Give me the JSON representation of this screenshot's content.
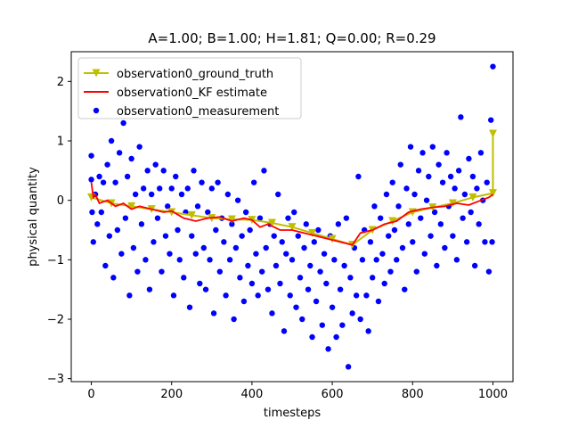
{
  "chart_data": {
    "type": "line",
    "title": "A=1.00; B=1.00; H=1.81; Q=0.00; R=0.29",
    "xlabel": "timesteps",
    "ylabel": "physical quantity",
    "xlim": [
      -50,
      1050
    ],
    "ylim": [
      -3.05,
      2.5
    ],
    "xticks": [
      0,
      200,
      400,
      600,
      800,
      1000
    ],
    "yticks": [
      -3,
      -2,
      -1,
      0,
      1,
      2
    ],
    "grid": false,
    "legend_position": "top-left",
    "series": [
      {
        "name": "observation0_ground_truth",
        "kind": "line-with-markers",
        "color": "#bfbf00",
        "marker": "triangle-down",
        "x": [
          0,
          50,
          100,
          150,
          200,
          250,
          300,
          350,
          400,
          450,
          500,
          550,
          600,
          650,
          700,
          750,
          800,
          850,
          900,
          950,
          1000,
          1000
        ],
        "y": [
          0.05,
          -0.05,
          -0.1,
          -0.15,
          -0.2,
          -0.25,
          -0.3,
          -0.32,
          -0.33,
          -0.38,
          -0.45,
          -0.55,
          -0.65,
          -0.75,
          -0.5,
          -0.35,
          -0.2,
          -0.12,
          -0.05,
          0.05,
          0.12,
          1.12
        ]
      },
      {
        "name": "observation0_KF estimate",
        "kind": "line",
        "color": "#ff0000",
        "x": [
          0,
          5,
          10,
          20,
          40,
          60,
          80,
          100,
          120,
          150,
          180,
          200,
          230,
          260,
          290,
          320,
          350,
          380,
          400,
          420,
          440,
          470,
          500,
          530,
          560,
          590,
          620,
          650,
          670,
          700,
          730,
          760,
          790,
          820,
          850,
          880,
          910,
          940,
          970,
          990,
          1000
        ],
        "y": [
          0.3,
          0.05,
          0.1,
          -0.05,
          0.0,
          -0.1,
          -0.05,
          -0.15,
          -0.1,
          -0.15,
          -0.2,
          -0.18,
          -0.3,
          -0.35,
          -0.3,
          -0.28,
          -0.35,
          -0.3,
          -0.33,
          -0.45,
          -0.4,
          -0.5,
          -0.5,
          -0.55,
          -0.6,
          -0.65,
          -0.7,
          -0.75,
          -0.55,
          -0.5,
          -0.4,
          -0.35,
          -0.2,
          -0.15,
          -0.12,
          -0.1,
          -0.05,
          -0.08,
          0.0,
          0.05,
          0.1
        ]
      },
      {
        "name": "observation0_measurement",
        "kind": "scatter",
        "color": "#0000ff",
        "note_values": "approximate samples read from the scatter cloud",
        "points": [
          [
            0,
            0.75
          ],
          [
            0,
            0.35
          ],
          [
            2,
            -0.2
          ],
          [
            5,
            -0.7
          ],
          [
            10,
            0.1
          ],
          [
            15,
            -0.4
          ],
          [
            20,
            0.4
          ],
          [
            25,
            -0.2
          ],
          [
            30,
            0.3
          ],
          [
            35,
            -1.1
          ],
          [
            40,
            0.6
          ],
          [
            45,
            -0.6
          ],
          [
            50,
            1.0
          ],
          [
            55,
            -1.3
          ],
          [
            60,
            0.3
          ],
          [
            65,
            -0.5
          ],
          [
            70,
            0.8
          ],
          [
            75,
            -0.9
          ],
          [
            80,
            1.3
          ],
          [
            85,
            -0.3
          ],
          [
            90,
            0.4
          ],
          [
            95,
            -1.6
          ],
          [
            100,
            0.7
          ],
          [
            105,
            -0.8
          ],
          [
            110,
            0.1
          ],
          [
            115,
            -1.2
          ],
          [
            120,
            0.9
          ],
          [
            125,
            -0.4
          ],
          [
            130,
            0.2
          ],
          [
            135,
            -1.0
          ],
          [
            140,
            0.5
          ],
          [
            145,
            -1.5
          ],
          [
            150,
            0.1
          ],
          [
            155,
            -0.7
          ],
          [
            160,
            0.6
          ],
          [
            165,
            -0.3
          ],
          [
            170,
            0.2
          ],
          [
            175,
            -1.2
          ],
          [
            180,
            0.5
          ],
          [
            185,
            -0.6
          ],
          [
            190,
            -0.1
          ],
          [
            195,
            -0.9
          ],
          [
            200,
            0.2
          ],
          [
            205,
            -1.6
          ],
          [
            210,
            0.4
          ],
          [
            215,
            -0.5
          ],
          [
            220,
            -1.0
          ],
          [
            225,
            0.1
          ],
          [
            230,
            -1.3
          ],
          [
            235,
            -0.2
          ],
          [
            240,
            0.2
          ],
          [
            245,
            -1.8
          ],
          [
            250,
            -0.6
          ],
          [
            255,
            0.5
          ],
          [
            260,
            -0.9
          ],
          [
            265,
            -0.1
          ],
          [
            270,
            -1.4
          ],
          [
            275,
            0.3
          ],
          [
            280,
            -0.8
          ],
          [
            285,
            -1.5
          ],
          [
            290,
            -0.2
          ],
          [
            295,
            -1.0
          ],
          [
            300,
            0.2
          ],
          [
            305,
            -1.9
          ],
          [
            310,
            -0.5
          ],
          [
            315,
            0.3
          ],
          [
            320,
            -1.2
          ],
          [
            325,
            -0.3
          ],
          [
            330,
            -0.7
          ],
          [
            335,
            -1.6
          ],
          [
            340,
            0.1
          ],
          [
            345,
            -1.0
          ],
          [
            350,
            -0.4
          ],
          [
            355,
            -2.0
          ],
          [
            360,
            -0.8
          ],
          [
            365,
            0.0
          ],
          [
            370,
            -1.3
          ],
          [
            375,
            -0.6
          ],
          [
            380,
            -1.7
          ],
          [
            385,
            -0.2
          ],
          [
            390,
            -1.1
          ],
          [
            395,
            -0.5
          ],
          [
            400,
            -1.4
          ],
          [
            405,
            0.3
          ],
          [
            410,
            -0.9
          ],
          [
            415,
            -1.6
          ],
          [
            420,
            -0.3
          ],
          [
            425,
            -1.2
          ],
          [
            430,
            0.5
          ],
          [
            435,
            -0.8
          ],
          [
            440,
            -1.5
          ],
          [
            445,
            -0.4
          ],
          [
            450,
            -1.9
          ],
          [
            455,
            -0.6
          ],
          [
            460,
            -1.1
          ],
          [
            465,
            0.1
          ],
          [
            470,
            -1.4
          ],
          [
            475,
            -0.7
          ],
          [
            480,
            -2.2
          ],
          [
            485,
            -0.9
          ],
          [
            490,
            -0.3
          ],
          [
            495,
            -1.6
          ],
          [
            500,
            -1.0
          ],
          [
            505,
            -0.2
          ],
          [
            510,
            -1.8
          ],
          [
            515,
            -0.6
          ],
          [
            520,
            -1.3
          ],
          [
            525,
            -2.0
          ],
          [
            530,
            -0.8
          ],
          [
            535,
            -0.4
          ],
          [
            540,
            -1.5
          ],
          [
            545,
            -1.1
          ],
          [
            550,
            -2.3
          ],
          [
            555,
            -0.7
          ],
          [
            560,
            -1.7
          ],
          [
            565,
            -0.5
          ],
          [
            570,
            -1.2
          ],
          [
            575,
            -2.1
          ],
          [
            580,
            -0.9
          ],
          [
            585,
            -1.4
          ],
          [
            590,
            -2.5
          ],
          [
            595,
            -0.6
          ],
          [
            600,
            -1.8
          ],
          [
            605,
            -1.0
          ],
          [
            610,
            -2.3
          ],
          [
            615,
            -0.4
          ],
          [
            620,
            -1.5
          ],
          [
            625,
            -2.1
          ],
          [
            630,
            -1.1
          ],
          [
            635,
            -0.3
          ],
          [
            640,
            -2.8
          ],
          [
            645,
            -1.3
          ],
          [
            650,
            -1.9
          ],
          [
            655,
            -0.8
          ],
          [
            660,
            -1.6
          ],
          [
            665,
            0.4
          ],
          [
            670,
            -2.0
          ],
          [
            675,
            -1.0
          ],
          [
            680,
            -0.5
          ],
          [
            685,
            -1.6
          ],
          [
            690,
            -2.2
          ],
          [
            695,
            -0.7
          ],
          [
            700,
            -1.3
          ],
          [
            705,
            -0.1
          ],
          [
            710,
            -1.0
          ],
          [
            715,
            -1.7
          ],
          [
            720,
            -0.3
          ],
          [
            725,
            -0.9
          ],
          [
            730,
            -1.4
          ],
          [
            735,
            0.1
          ],
          [
            740,
            -0.6
          ],
          [
            745,
            -1.2
          ],
          [
            750,
            0.3
          ],
          [
            755,
            -0.5
          ],
          [
            760,
            -1.0
          ],
          [
            765,
            -0.1
          ],
          [
            770,
            0.6
          ],
          [
            775,
            -0.8
          ],
          [
            780,
            -1.5
          ],
          [
            785,
            0.2
          ],
          [
            790,
            -0.4
          ],
          [
            795,
            0.9
          ],
          [
            800,
            -0.7
          ],
          [
            805,
            0.1
          ],
          [
            810,
            -1.2
          ],
          [
            815,
            0.5
          ],
          [
            820,
            -0.3
          ],
          [
            825,
            0.8
          ],
          [
            830,
            -0.9
          ],
          [
            835,
            0.0
          ],
          [
            840,
            0.4
          ],
          [
            845,
            -0.6
          ],
          [
            850,
            0.9
          ],
          [
            855,
            -0.2
          ],
          [
            860,
            -1.1
          ],
          [
            865,
            0.6
          ],
          [
            870,
            -0.4
          ],
          [
            875,
            0.3
          ],
          [
            880,
            -0.8
          ],
          [
            885,
            0.8
          ],
          [
            890,
            -0.1
          ],
          [
            895,
            0.4
          ],
          [
            900,
            -0.6
          ],
          [
            905,
            0.2
          ],
          [
            910,
            -1.0
          ],
          [
            915,
            0.5
          ],
          [
            920,
            1.4
          ],
          [
            925,
            -0.3
          ],
          [
            930,
            0.1
          ],
          [
            935,
            -0.7
          ],
          [
            940,
            0.7
          ],
          [
            945,
            -0.2
          ],
          [
            950,
            0.4
          ],
          [
            955,
            -1.1
          ],
          [
            960,
            0.2
          ],
          [
            965,
            -0.4
          ],
          [
            970,
            0.8
          ],
          [
            975,
            0.0
          ],
          [
            980,
            -0.7
          ],
          [
            985,
            0.3
          ],
          [
            990,
            -1.2
          ],
          [
            995,
            1.35
          ],
          [
            998,
            -0.7
          ],
          [
            1000,
            2.25
          ]
        ]
      }
    ]
  }
}
